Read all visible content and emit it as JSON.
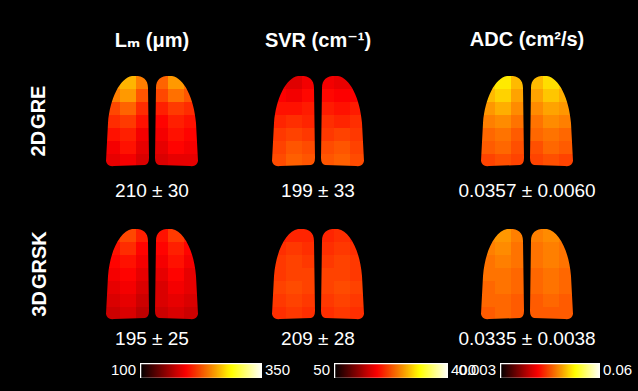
{
  "chart_data": {
    "type": "heatmap",
    "columns": [
      {
        "title": "Lₘ (μm)",
        "colorbar": {
          "range": [
            100,
            350
          ],
          "ticks": [
            100,
            350
          ]
        }
      },
      {
        "title": "SVR (cm⁻¹)",
        "colorbar": {
          "range": [
            50,
            400
          ],
          "ticks": [
            50,
            400
          ]
        }
      },
      {
        "title": "ADC (cm²/s)",
        "colorbar": {
          "range": [
            0.003,
            0.06
          ],
          "ticks": [
            0.003,
            0.06
          ]
        }
      }
    ],
    "rows": [
      {
        "label": "2D GRE",
        "maps": [
          {
            "summary": "210 ± 30",
            "cells": [
              [
                250,
                260,
                240,
                230,
                250,
                235
              ],
              [
                240,
                250,
                225,
                220,
                235,
                225
              ],
              [
                220,
                230,
                210,
                205,
                215,
                210
              ],
              [
                210,
                215,
                200,
                195,
                205,
                200
              ],
              [
                200,
                205,
                190,
                190,
                200,
                195
              ],
              [
                190,
                200,
                185,
                185,
                195,
                190
              ],
              [
                185,
                190,
                180,
                180,
                185,
                185
              ]
            ]
          },
          {
            "summary": "199 ± 33",
            "cells": [
              [
                170,
                165,
                175,
                175,
                170,
                170
              ],
              [
                180,
                175,
                185,
                185,
                180,
                180
              ],
              [
                190,
                190,
                195,
                195,
                190,
                195
              ],
              [
                200,
                205,
                200,
                205,
                200,
                205
              ],
              [
                210,
                215,
                210,
                210,
                215,
                210
              ],
              [
                215,
                225,
                220,
                220,
                225,
                215
              ],
              [
                220,
                230,
                225,
                225,
                230,
                220
              ]
            ]
          },
          {
            "summary": "0.0357 ± 0.0060",
            "cells": [
              [
                0.042,
                0.044,
                0.04,
                0.04,
                0.043,
                0.041
              ],
              [
                0.04,
                0.042,
                0.038,
                0.038,
                0.041,
                0.039
              ],
              [
                0.037,
                0.039,
                0.036,
                0.036,
                0.038,
                0.037
              ],
              [
                0.035,
                0.036,
                0.034,
                0.034,
                0.036,
                0.035
              ],
              [
                0.033,
                0.034,
                0.032,
                0.033,
                0.034,
                0.033
              ],
              [
                0.032,
                0.033,
                0.031,
                0.031,
                0.033,
                0.032
              ],
              [
                0.03,
                0.031,
                0.03,
                0.03,
                0.031,
                0.03
              ]
            ]
          }
        ]
      },
      {
        "label": "3D GRSK",
        "maps": [
          {
            "summary": "195 ± 25",
            "cells": [
              [
                210,
                220,
                205,
                200,
                215,
                205
              ],
              [
                200,
                210,
                195,
                195,
                205,
                195
              ],
              [
                195,
                200,
                190,
                190,
                200,
                190
              ],
              [
                190,
                195,
                185,
                185,
                195,
                185
              ],
              [
                185,
                190,
                180,
                180,
                190,
                185
              ],
              [
                180,
                185,
                175,
                180,
                185,
                180
              ],
              [
                175,
                180,
                170,
                175,
                180,
                175
              ]
            ]
          },
          {
            "summary": "209 ± 28",
            "cells": [
              [
                195,
                200,
                200,
                200,
                205,
                195
              ],
              [
                205,
                210,
                205,
                205,
                210,
                205
              ],
              [
                210,
                215,
                210,
                210,
                215,
                210
              ],
              [
                210,
                215,
                215,
                215,
                215,
                210
              ],
              [
                215,
                220,
                215,
                215,
                220,
                215
              ],
              [
                210,
                215,
                210,
                210,
                215,
                210
              ],
              [
                205,
                210,
                205,
                205,
                210,
                205
              ]
            ]
          },
          {
            "summary": "0.0335 ± 0.0038",
            "cells": [
              [
                0.036,
                0.037,
                0.035,
                0.035,
                0.036,
                0.035
              ],
              [
                0.035,
                0.036,
                0.034,
                0.034,
                0.035,
                0.034
              ],
              [
                0.034,
                0.035,
                0.034,
                0.034,
                0.035,
                0.034
              ],
              [
                0.034,
                0.034,
                0.033,
                0.033,
                0.034,
                0.033
              ],
              [
                0.033,
                0.034,
                0.033,
                0.033,
                0.034,
                0.033
              ],
              [
                0.033,
                0.033,
                0.032,
                0.032,
                0.033,
                0.032
              ],
              [
                0.032,
                0.033,
                0.032,
                0.032,
                0.032,
                0.032
              ]
            ]
          }
        ]
      }
    ]
  }
}
